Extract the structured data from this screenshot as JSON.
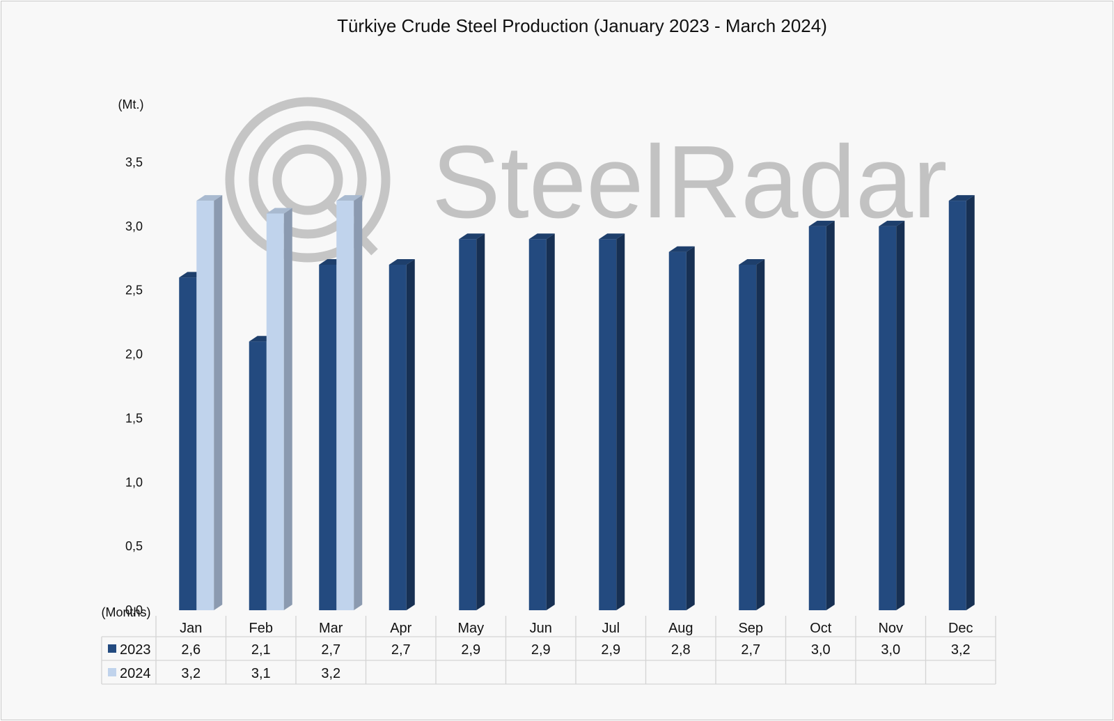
{
  "chart_data": {
    "type": "bar",
    "title": "Türkiye Crude Steel Production (January 2023 - March 2024)",
    "ylabel": "(Mt.)",
    "xlabel": "(Months)",
    "ylim": [
      0,
      3.5
    ],
    "yticks": [
      "0,0",
      "0,5",
      "1,0",
      "1,5",
      "2,0",
      "2,5",
      "3,0",
      "3,5"
    ],
    "categories": [
      "Jan",
      "Feb",
      "Mar",
      "Apr",
      "May",
      "Jun",
      "Jul",
      "Aug",
      "Sep",
      "Oct",
      "Nov",
      "Dec"
    ],
    "series": [
      {
        "name": "2023",
        "color": "#234a7f",
        "values": [
          2.6,
          2.1,
          2.7,
          2.7,
          2.9,
          2.9,
          2.9,
          2.8,
          2.7,
          3.0,
          3.0,
          3.2
        ],
        "labels": [
          "2,6",
          "2,1",
          "2,7",
          "2,7",
          "2,9",
          "2,9",
          "2,9",
          "2,8",
          "2,7",
          "3,0",
          "3,0",
          "3,2"
        ]
      },
      {
        "name": "2024",
        "color": "#c0d3ec",
        "values": [
          3.2,
          3.1,
          3.2,
          null,
          null,
          null,
          null,
          null,
          null,
          null,
          null,
          null
        ],
        "labels": [
          "3,2",
          "3,1",
          "3,2",
          "",
          "",
          "",
          "",
          "",
          "",
          "",
          "",
          ""
        ]
      }
    ],
    "grid": false,
    "legend": "data-table"
  },
  "watermark": {
    "text": "SteelRadar",
    "color": "#b9b9b9"
  }
}
